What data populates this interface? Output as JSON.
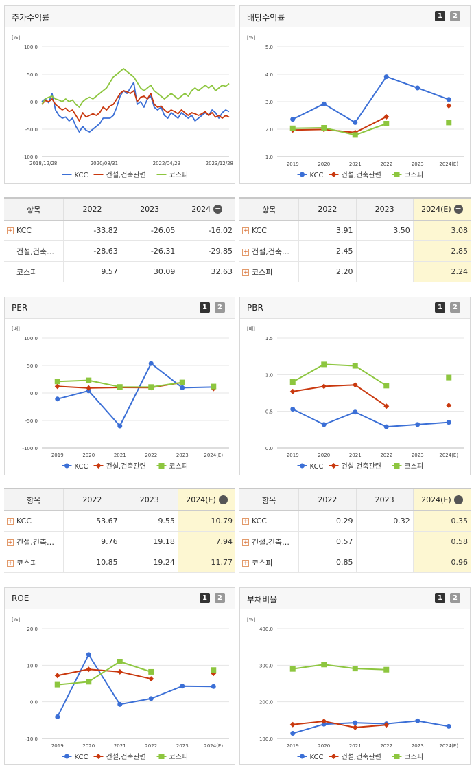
{
  "colors": {
    "kcc": "#3b6fd6",
    "construction": "#c9380e",
    "kospi": "#8dc63f"
  },
  "legend": [
    "KCC",
    "건설,건축관련",
    "코스피"
  ],
  "pagination": {
    "p1": "1",
    "p2": "2"
  },
  "panels": {
    "stock": {
      "title": "주가수익률"
    },
    "dividend": {
      "title": "배당수익률"
    },
    "per": {
      "title": "PER"
    },
    "pbr": {
      "title": "PBR"
    },
    "roe": {
      "title": "ROE"
    },
    "debt": {
      "title": "부채비율"
    }
  },
  "chart_data": [
    {
      "id": "stock",
      "type": "line",
      "title": "주가수익률",
      "unit": "[%]",
      "ylim": [
        -100,
        100
      ],
      "yticks": [
        "100.0",
        "50.0",
        "0.0",
        "-50.0",
        "-100.0"
      ],
      "xticks": [
        "2018/12/28",
        "2020/08/31",
        "2022/04/29",
        "2023/12/28"
      ],
      "series": [
        {
          "name": "KCC",
          "values": [
            0,
            5,
            -2,
            15,
            -15,
            -25,
            -30,
            -28,
            -35,
            -30,
            -45,
            -55,
            -45,
            -52,
            -55,
            -50,
            -45,
            -40,
            -30,
            -30,
            -30,
            -25,
            -10,
            10,
            20,
            15,
            25,
            35,
            -5,
            0,
            -10,
            5,
            10,
            -10,
            -15,
            -10,
            -25,
            -30,
            -20,
            -25,
            -30,
            -20,
            -25,
            -30,
            -25,
            -35,
            -30,
            -25,
            -20,
            -25,
            -15,
            -20,
            -30,
            -20,
            -15,
            -18
          ]
        },
        {
          "name": "건설,건축관련",
          "values": [
            -5,
            2,
            0,
            5,
            -5,
            -10,
            -15,
            -12,
            -18,
            -15,
            -25,
            -35,
            -20,
            -28,
            -25,
            -22,
            -25,
            -20,
            -10,
            -15,
            -8,
            -5,
            5,
            15,
            20,
            18,
            15,
            20,
            0,
            8,
            10,
            5,
            15,
            -5,
            -10,
            -8,
            -15,
            -20,
            -15,
            -18,
            -22,
            -15,
            -20,
            -25,
            -20,
            -22,
            -25,
            -22,
            -18,
            -25,
            -20,
            -28,
            -25,
            -30,
            -25,
            -28
          ]
        },
        {
          "name": "코스피",
          "values": [
            -5,
            5,
            8,
            10,
            5,
            3,
            0,
            5,
            0,
            3,
            -5,
            -10,
            0,
            5,
            8,
            5,
            10,
            15,
            20,
            25,
            35,
            45,
            50,
            55,
            60,
            55,
            50,
            45,
            35,
            25,
            20,
            25,
            30,
            20,
            15,
            10,
            5,
            10,
            15,
            10,
            5,
            10,
            15,
            10,
            20,
            25,
            20,
            25,
            30,
            25,
            30,
            20,
            25,
            30,
            28,
            33
          ]
        }
      ]
    },
    {
      "id": "dividend",
      "type": "line",
      "title": "배당수익률",
      "unit": "[%]",
      "ylim": [
        1,
        5
      ],
      "yticks": [
        "5.0",
        "4.0",
        "3.0",
        "2.0",
        "1.0"
      ],
      "categories": [
        "2019",
        "2020",
        "2021",
        "2022",
        "2023",
        "2024(E)"
      ],
      "series": [
        {
          "name": "KCC",
          "values": [
            2.36,
            2.92,
            2.24,
            3.91,
            3.5,
            3.08
          ]
        },
        {
          "name": "건설,건축관련",
          "values": [
            1.97,
            1.99,
            1.88,
            2.45,
            null,
            2.85
          ]
        },
        {
          "name": "코스피",
          "values": [
            2.03,
            2.05,
            1.79,
            2.2,
            null,
            2.24
          ]
        }
      ]
    },
    {
      "id": "per",
      "type": "line",
      "title": "PER",
      "unit": "[배]",
      "ylim": [
        -100,
        100
      ],
      "yticks": [
        "100.0",
        "50.0",
        "0.0",
        "-50.0",
        "-100.0"
      ],
      "categories": [
        "2019",
        "2020",
        "2021",
        "2022",
        "2023",
        "2024(E)"
      ],
      "series": [
        {
          "name": "KCC",
          "values": [
            -11,
            4,
            -60,
            53.67,
            9.55,
            10.79
          ]
        },
        {
          "name": "건설,건축관련",
          "values": [
            12,
            9,
            10,
            9.76,
            19.18,
            7.94
          ]
        },
        {
          "name": "코스피",
          "values": [
            21,
            23,
            11,
            10.85,
            19.24,
            11.77
          ]
        }
      ]
    },
    {
      "id": "pbr",
      "type": "line",
      "title": "PBR",
      "unit": "[배]",
      "ylim": [
        0,
        1.5
      ],
      "yticks": [
        "1.5",
        "1.0",
        "0.5",
        "0.0"
      ],
      "categories": [
        "2019",
        "2020",
        "2021",
        "2022",
        "2023",
        "2024(E)"
      ],
      "series": [
        {
          "name": "KCC",
          "values": [
            0.53,
            0.32,
            0.49,
            0.29,
            0.32,
            0.35
          ]
        },
        {
          "name": "건설,건축관련",
          "values": [
            0.77,
            0.84,
            0.86,
            0.57,
            null,
            0.58
          ]
        },
        {
          "name": "코스피",
          "values": [
            0.9,
            1.14,
            1.12,
            0.85,
            null,
            0.96
          ]
        }
      ]
    },
    {
      "id": "roe",
      "type": "line",
      "title": "ROE",
      "unit": "[%]",
      "ylim": [
        -10,
        20
      ],
      "yticks": [
        "20.0",
        "10.0",
        "0.0",
        "-10.0"
      ],
      "categories": [
        "2019",
        "2020",
        "2021",
        "2022",
        "2023",
        "2024(E)"
      ],
      "series": [
        {
          "name": "KCC",
          "values": [
            -4.1,
            12.9,
            -0.7,
            0.9,
            4.3,
            4.2
          ]
        },
        {
          "name": "건설,건축관련",
          "values": [
            7.2,
            8.9,
            8.2,
            6.3,
            null,
            7.8
          ]
        },
        {
          "name": "코스피",
          "values": [
            4.7,
            5.5,
            11.0,
            8.2,
            null,
            8.7
          ]
        }
      ]
    },
    {
      "id": "debt",
      "type": "line",
      "title": "부채비율",
      "unit": "[%]",
      "ylim": [
        100,
        400
      ],
      "yticks": [
        "400.0",
        "300.0",
        "200.0",
        "100.0"
      ],
      "categories": [
        "2019",
        "2020",
        "2021",
        "2022",
        "2023",
        "2024(E)"
      ],
      "series": [
        {
          "name": "KCC",
          "values": [
            114,
            139,
            143,
            140,
            148,
            133
          ]
        },
        {
          "name": "건설,건축관련",
          "values": [
            138,
            147,
            130,
            137,
            null,
            null
          ]
        },
        {
          "name": "코스피",
          "values": [
            290,
            302,
            291,
            288,
            null,
            null
          ]
        }
      ]
    }
  ],
  "tables": {
    "stock": {
      "header": [
        "항목",
        "2022",
        "2023",
        "2024"
      ],
      "highlight": false,
      "rows": [
        {
          "label": "KCC",
          "plus": true,
          "values": [
            "-33.82",
            "-26.05",
            "-16.02"
          ]
        },
        {
          "label": "건설,건축…",
          "plus": false,
          "values": [
            "-28.63",
            "-26.31",
            "-29.85"
          ]
        },
        {
          "label": "코스피",
          "plus": false,
          "values": [
            "9.57",
            "30.09",
            "32.63"
          ]
        }
      ]
    },
    "dividend": {
      "header": [
        "항목",
        "2022",
        "2023",
        "2024(E)"
      ],
      "highlight": true,
      "rows": [
        {
          "label": "KCC",
          "plus": true,
          "values": [
            "3.91",
            "3.50",
            "3.08"
          ]
        },
        {
          "label": "건설,건축…",
          "plus": true,
          "values": [
            "2.45",
            "",
            "2.85"
          ]
        },
        {
          "label": "코스피",
          "plus": true,
          "values": [
            "2.20",
            "",
            "2.24"
          ]
        }
      ]
    },
    "per": {
      "header": [
        "항목",
        "2022",
        "2023",
        "2024(E)"
      ],
      "highlight": true,
      "rows": [
        {
          "label": "KCC",
          "plus": true,
          "values": [
            "53.67",
            "9.55",
            "10.79"
          ]
        },
        {
          "label": "건설,건축…",
          "plus": true,
          "values": [
            "9.76",
            "19.18",
            "7.94"
          ]
        },
        {
          "label": "코스피",
          "plus": true,
          "values": [
            "10.85",
            "19.24",
            "11.77"
          ]
        }
      ]
    },
    "pbr": {
      "header": [
        "항목",
        "2022",
        "2023",
        "2024(E)"
      ],
      "highlight": true,
      "rows": [
        {
          "label": "KCC",
          "plus": true,
          "values": [
            "0.29",
            "0.32",
            "0.35"
          ]
        },
        {
          "label": "건설,건축…",
          "plus": true,
          "values": [
            "0.57",
            "",
            "0.58"
          ]
        },
        {
          "label": "코스피",
          "plus": true,
          "values": [
            "0.85",
            "",
            "0.96"
          ]
        }
      ]
    }
  }
}
